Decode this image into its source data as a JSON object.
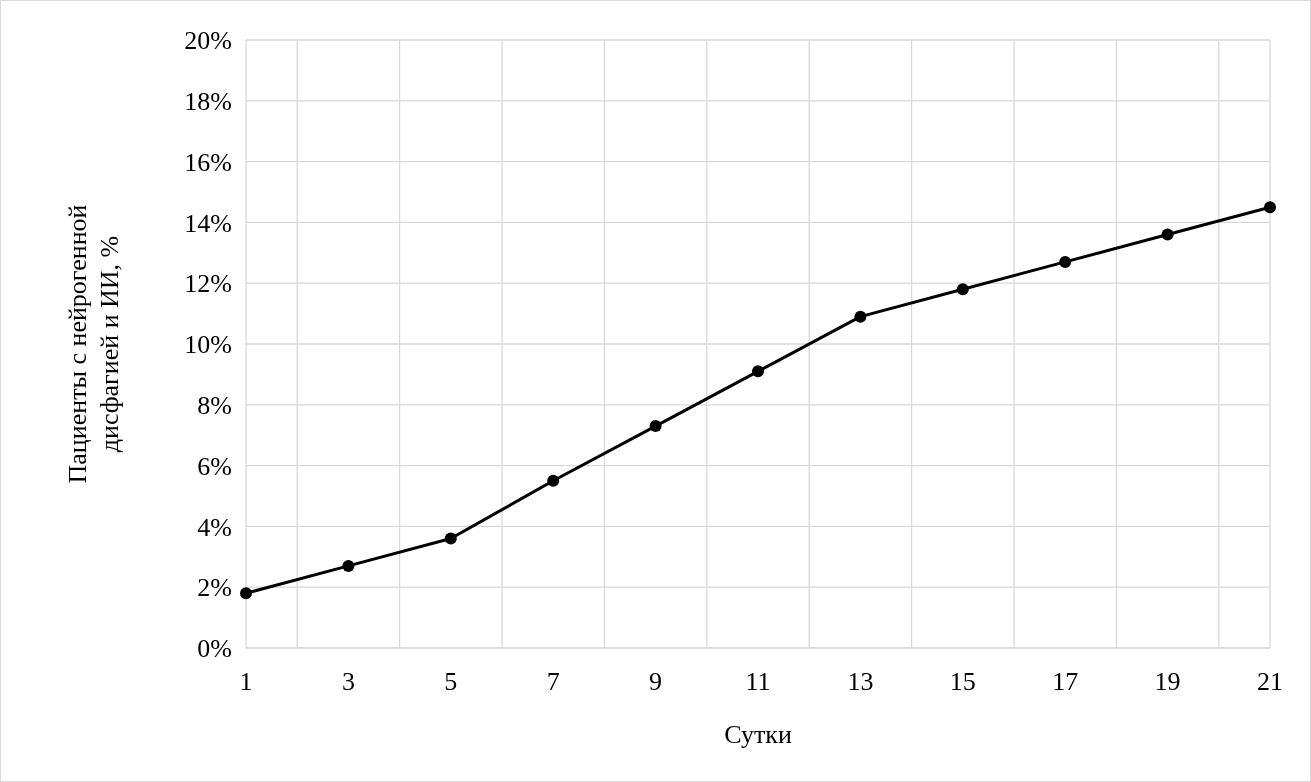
{
  "chart_data": {
    "type": "line",
    "xlabel": "Сутки",
    "ylabel": "Пациенты с нейрогенной\nдисфагией и ИИ, %",
    "x": [
      1,
      3,
      5,
      7,
      9,
      11,
      13,
      15,
      17,
      19,
      21
    ],
    "series": [
      {
        "color": "#000000",
        "values": [
          1.8,
          2.7,
          3.6,
          5.5,
          7.3,
          9.1,
          10.9,
          11.8,
          12.7,
          13.6,
          14.5
        ]
      }
    ],
    "xlim": [
      1,
      21
    ],
    "xticks": [
      1,
      {
        "value": 2,
        "label": null
      },
      3,
      {
        "value": 4,
        "label": null
      },
      5,
      {
        "value": 6,
        "label": null
      },
      7,
      {
        "value": 8,
        "label": null
      },
      9,
      {
        "value": 10,
        "label": null
      },
      11,
      {
        "value": 12,
        "label": null
      },
      13,
      {
        "value": 14,
        "label": null
      },
      15,
      {
        "value": 16,
        "label": null
      },
      17,
      {
        "value": 18,
        "label": null
      },
      19,
      {
        "value": 20,
        "label": null
      },
      21
    ],
    "ylim": [
      0,
      20
    ],
    "yticks": [
      {
        "value": 0,
        "label": "0%"
      },
      {
        "value": 2,
        "label": "2%"
      },
      {
        "value": 4,
        "label": "4%"
      },
      {
        "value": 6,
        "label": "6%"
      },
      {
        "value": 8,
        "label": "8%"
      },
      {
        "value": 10,
        "label": "10%"
      },
      {
        "value": 12,
        "label": "12%"
      },
      {
        "value": 14,
        "label": "14%"
      },
      {
        "value": 16,
        "label": "16%"
      },
      {
        "value": 18,
        "label": "18%"
      },
      {
        "value": 20,
        "label": "20%"
      }
    ],
    "grid": true,
    "marker": "circle",
    "line_style": "solid"
  }
}
